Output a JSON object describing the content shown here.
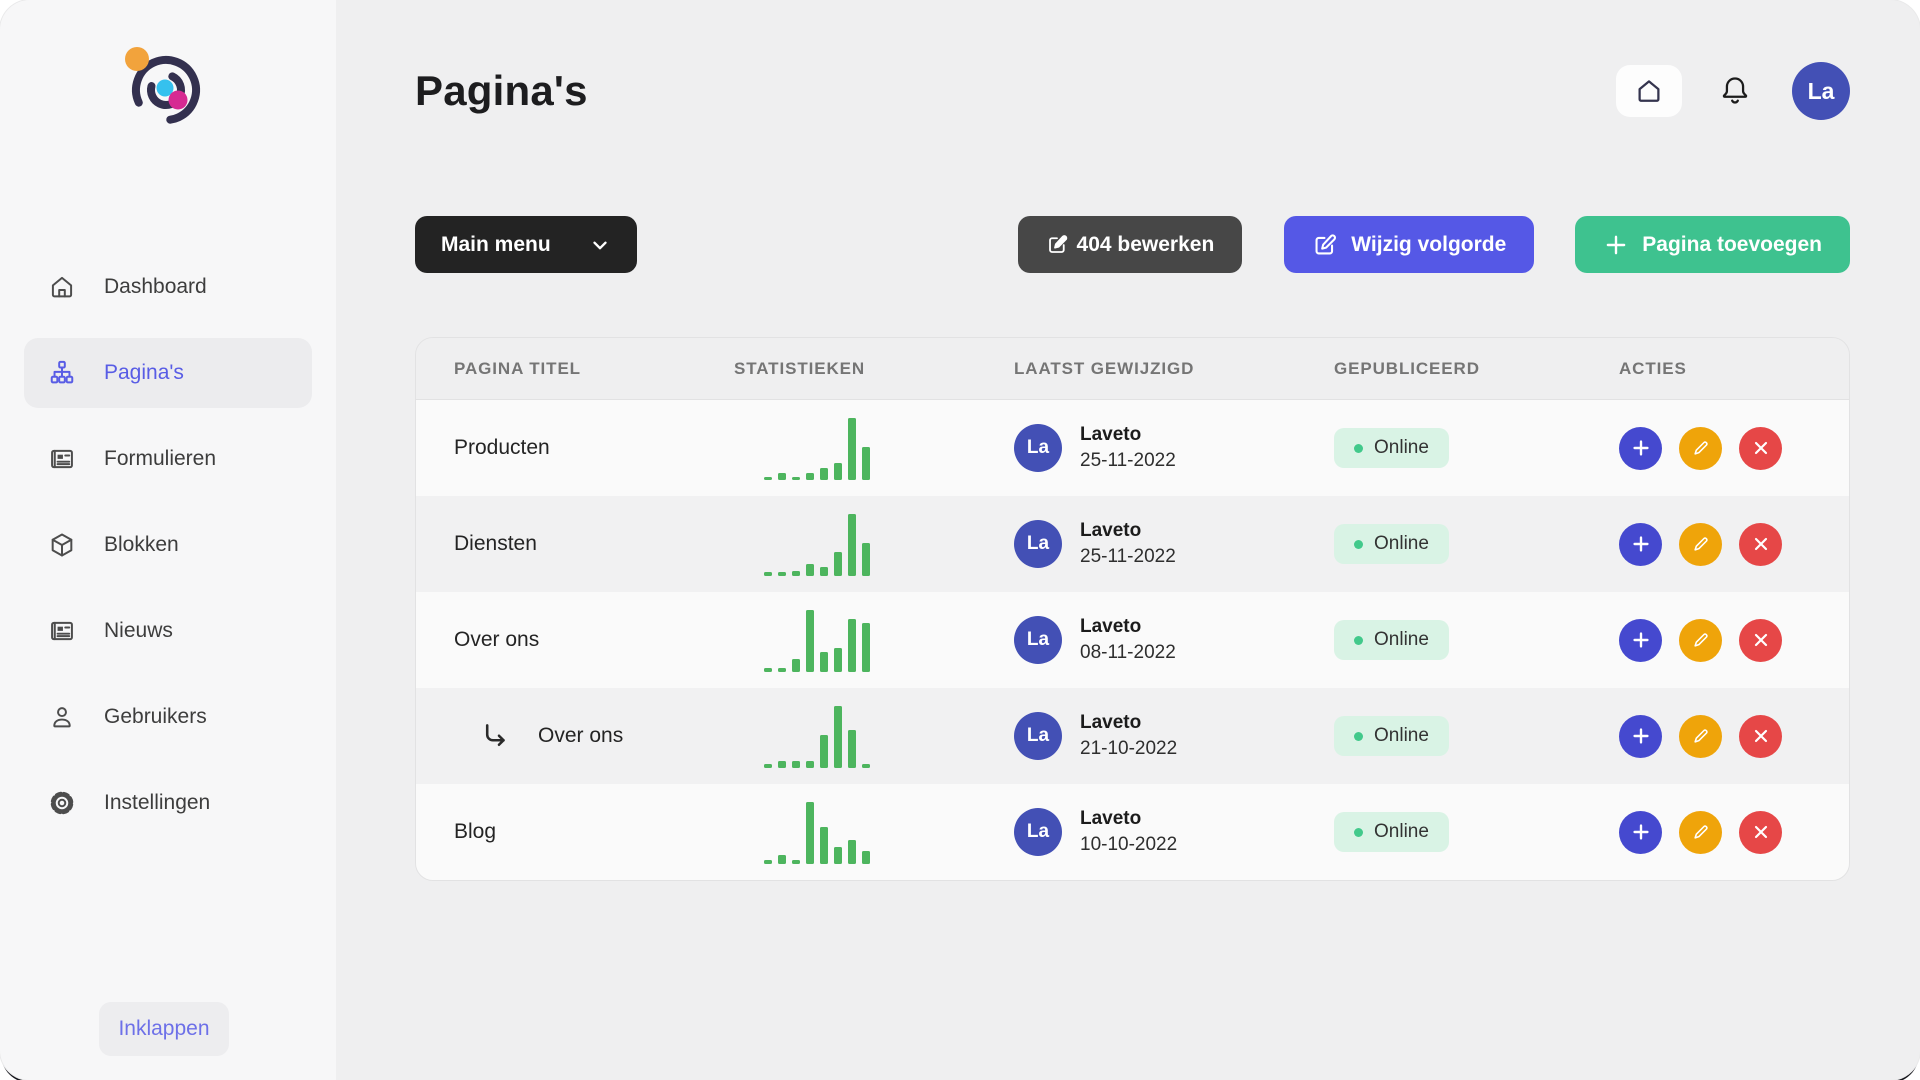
{
  "sidebar": {
    "items": [
      {
        "label": "Dashboard",
        "icon": "home-icon",
        "active": false
      },
      {
        "label": "Pagina's",
        "icon": "sitemap-icon",
        "active": true
      },
      {
        "label": "Formulieren",
        "icon": "form-icon",
        "active": false
      },
      {
        "label": "Blokken",
        "icon": "cube-icon",
        "active": false
      },
      {
        "label": "Nieuws",
        "icon": "news-icon",
        "active": false
      },
      {
        "label": "Gebruikers",
        "icon": "user-icon",
        "active": false
      },
      {
        "label": "Instellingen",
        "icon": "gear-icon",
        "active": false
      }
    ],
    "collapse_label": "Inklappen"
  },
  "header": {
    "title": "Pagina's",
    "avatar_initials": "La",
    "icons": [
      "home-icon",
      "bell-icon"
    ]
  },
  "toolbar": {
    "menu_select_label": "Main menu",
    "edit_404_label": "404 bewerken",
    "change_order_label": "Wijzig volgorde",
    "add_page_label": "Pagina toevoegen"
  },
  "table": {
    "columns": [
      "PAGINA TITEL",
      "STATISTIEKEN",
      "LAATST GEWIJZIGD",
      "GEPUBLICEERD",
      "ACTIES"
    ],
    "rows": [
      {
        "title": "Producten",
        "child": false,
        "stats": [
          3,
          7,
          3,
          7,
          12,
          17,
          62,
          33
        ],
        "author": "Laveto",
        "author_initials": "La",
        "date": "25-11-2022",
        "status": "Online"
      },
      {
        "title": "Diensten",
        "child": false,
        "stats": [
          4,
          4,
          5,
          12,
          9,
          24,
          62,
          33
        ],
        "author": "Laveto",
        "author_initials": "La",
        "date": "25-11-2022",
        "status": "Online"
      },
      {
        "title": "Over ons",
        "child": false,
        "stats": [
          4,
          4,
          13,
          62,
          20,
          24,
          53,
          49
        ],
        "author": "Laveto",
        "author_initials": "La",
        "date": "08-11-2022",
        "status": "Online"
      },
      {
        "title": "Over ons",
        "child": true,
        "stats": [
          4,
          7,
          7,
          7,
          33,
          62,
          38,
          4
        ],
        "author": "Laveto",
        "author_initials": "La",
        "date": "21-10-2022",
        "status": "Online"
      },
      {
        "title": "Blog",
        "child": false,
        "stats": [
          4,
          9,
          4,
          62,
          37,
          17,
          24,
          13
        ],
        "author": "Laveto",
        "author_initials": "La",
        "date": "10-10-2022",
        "status": "Online"
      }
    ],
    "row_action_icons": [
      "plus-icon",
      "pencil-icon",
      "close-icon"
    ]
  },
  "colors": {
    "accent_indigo": "#5558e6",
    "avatar_indigo": "#4350b5",
    "button_green": "#3ec28f",
    "button_dark": "#474747",
    "menu_button_dark": "#232323",
    "action_add": "#4549cf",
    "action_edit": "#efa40a",
    "action_delete": "#e64747",
    "status_badge_bg": "#d9f3e5",
    "status_dot": "#42c98b",
    "chart_bar_green": "#4db55e",
    "logo_orange": "#f2a33c",
    "logo_cyan": "#35c1ee",
    "logo_magenta": "#d62a92",
    "logo_navy": "#33304f"
  }
}
